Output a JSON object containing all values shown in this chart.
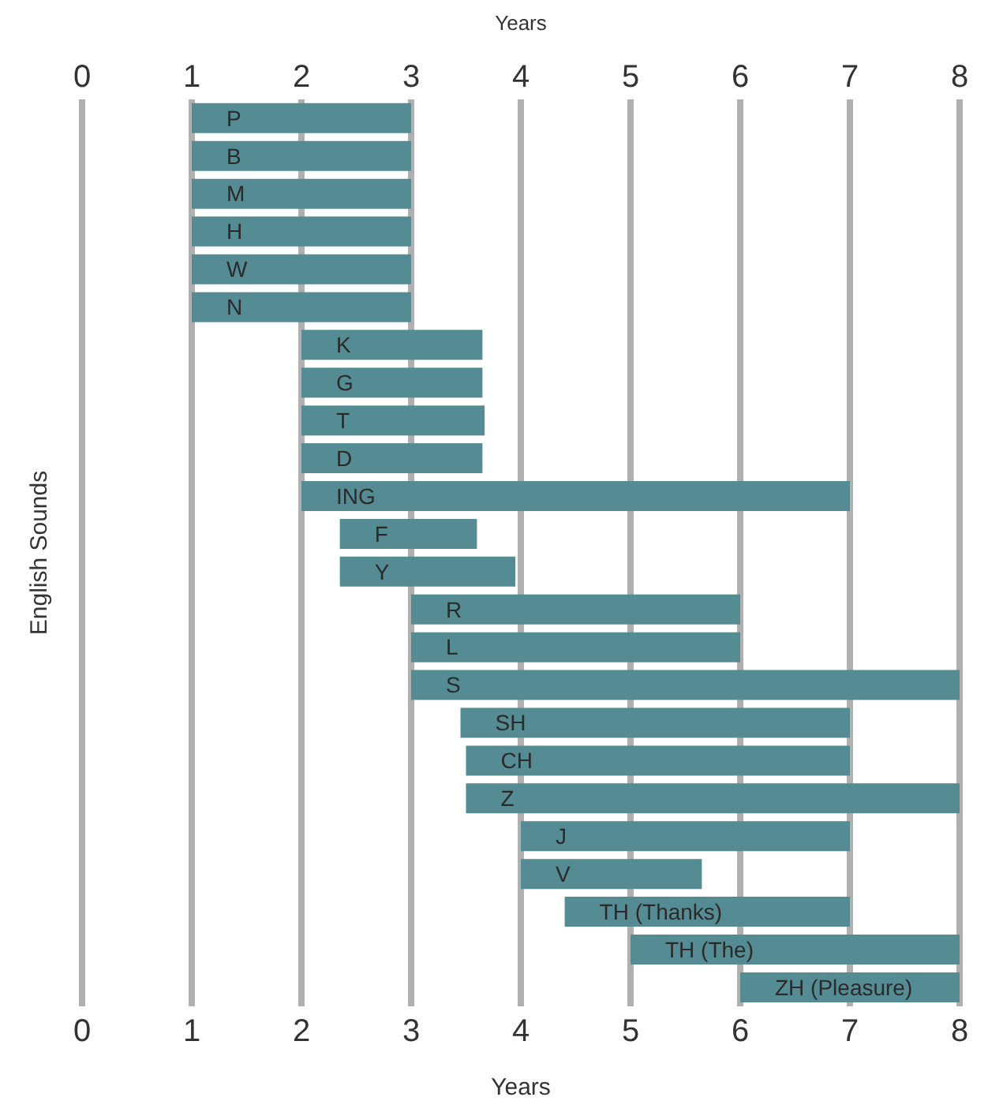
{
  "chart_data": {
    "type": "bar",
    "orientation": "horizontal",
    "xlabel": "Years",
    "x2label": "Years",
    "ylabel": "English Sounds",
    "categories": [
      "P",
      "B",
      "M",
      "H",
      "W",
      "N",
      "K",
      "G",
      "T",
      "D",
      "ING",
      "F",
      "Y",
      "R",
      "L",
      "S",
      "SH",
      "CH",
      "Z",
      "J",
      "V",
      "TH (Thanks)",
      "TH (The)",
      "ZH (Pleasure)"
    ],
    "base": [
      1,
      1,
      1,
      1,
      1,
      1,
      2,
      2,
      2,
      2,
      2,
      2.35,
      2.35,
      3,
      3,
      3,
      3.45,
      3.5,
      3.5,
      4,
      4,
      4.4,
      5,
      6
    ],
    "values": [
      2,
      2,
      2,
      2,
      2,
      2,
      1.65,
      1.65,
      1.67,
      1.65,
      5,
      1.25,
      1.6,
      3,
      3,
      5,
      3.55,
      3.5,
      4.5,
      3,
      1.65,
      2.6,
      3,
      2
    ],
    "color": "#558b93",
    "xlim": [
      0,
      8
    ],
    "xticks": [
      0,
      1,
      2,
      3,
      4,
      5,
      6,
      7,
      8
    ],
    "x2lim": [
      0,
      8
    ],
    "x2ticks": [
      0,
      1,
      2,
      3,
      4,
      5,
      6,
      7,
      8
    ],
    "grid": "x",
    "tick_labels": "x"
  }
}
